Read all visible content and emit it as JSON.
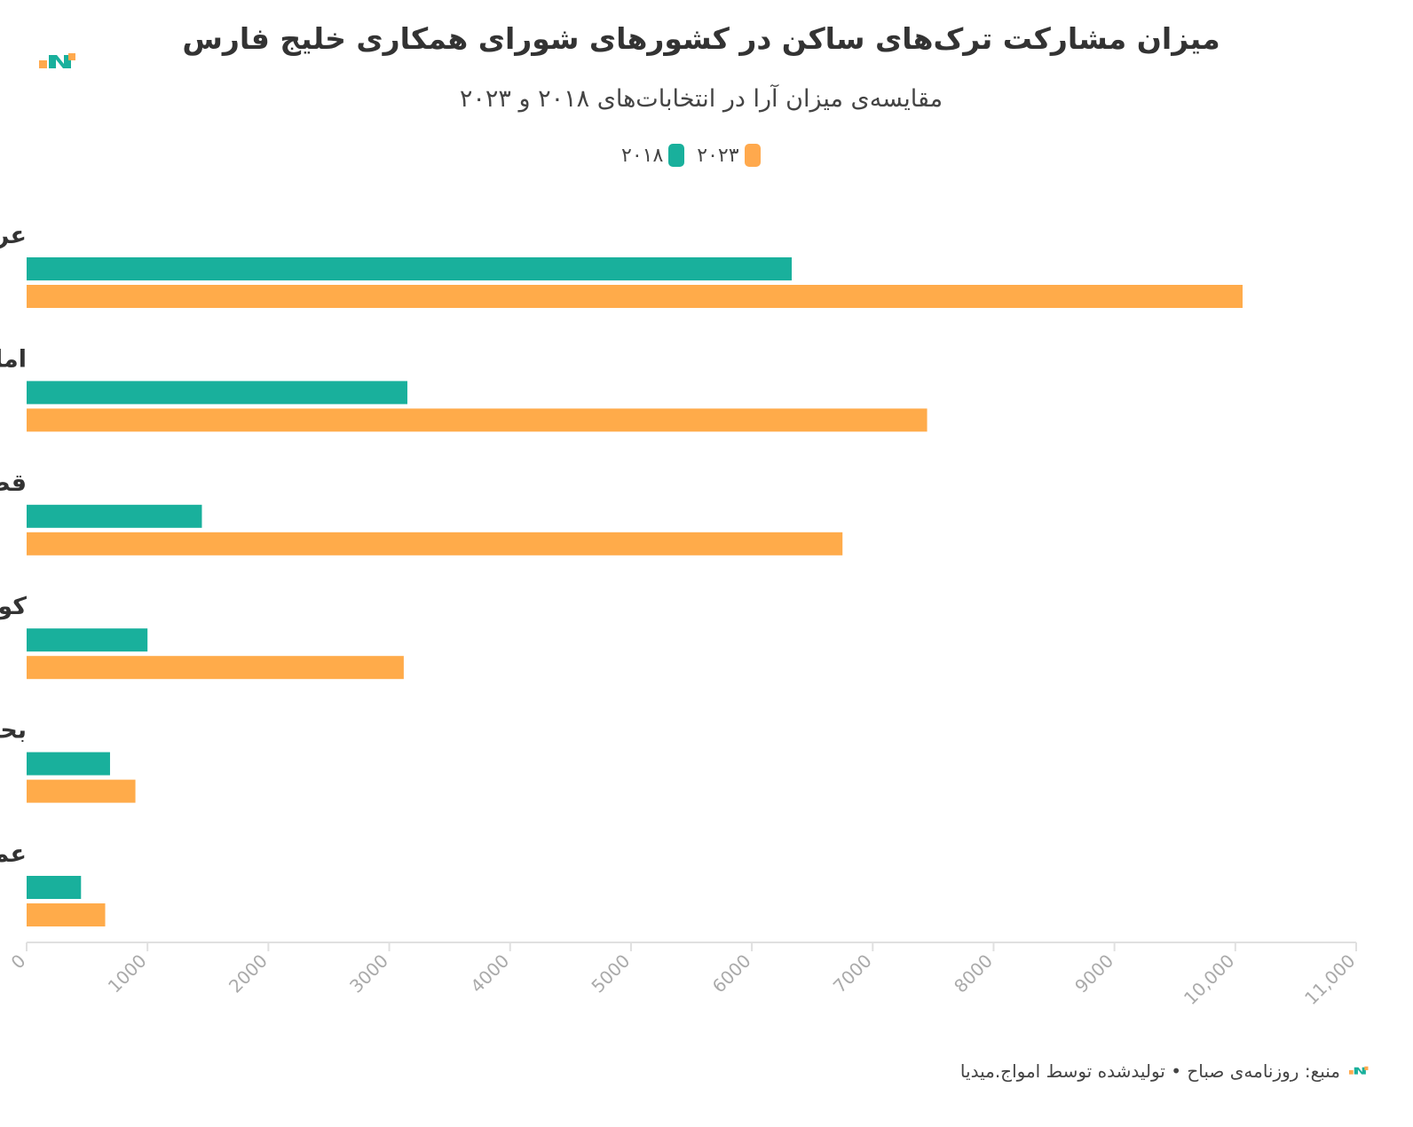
{
  "title": "میزان مشارکت ترک‌های ساکن در کشورهای شورای همکاری خلیج فارس",
  "subtitle": "مقایسه‌ی میزان آرا در انتخابات‌های ۲۰۱۸ و ۲۰۲۳",
  "legend": [
    {
      "label": "۲۰۲۳",
      "color": "#ffa94d"
    },
    {
      "label": "۲۰۱۸",
      "color": "#19b09c"
    }
  ],
  "footer": {
    "text": "منبع: روزنامه‌ی صباح • تولیدشده توسط امواج.میدیا"
  },
  "colors": {
    "series_2018": "#19b09c",
    "series_2023": "#ffab4a",
    "axis": "#e0e0e0",
    "tick_text": "#aaaaaa"
  },
  "chart_data": {
    "type": "bar",
    "orientation": "horizontal",
    "categories": [
      "عربستان سعودی",
      "امارات",
      "قطر",
      "کویت",
      "بحرین",
      "عمان"
    ],
    "series": [
      {
        "name": "۲۰۱۸",
        "values": [
          6330,
          3150,
          1450,
          1000,
          690,
          450
        ]
      },
      {
        "name": "۲۰۲۳",
        "values": [
          10060,
          7450,
          6750,
          3120,
          900,
          650
        ]
      }
    ],
    "xlim": [
      0,
      11000
    ],
    "xticks": [
      "0",
      "1000",
      "2000",
      "3000",
      "4000",
      "5000",
      "6000",
      "7000",
      "8000",
      "9000",
      "10,000",
      "11,000"
    ],
    "grid": false,
    "legend_position": "top-center"
  }
}
